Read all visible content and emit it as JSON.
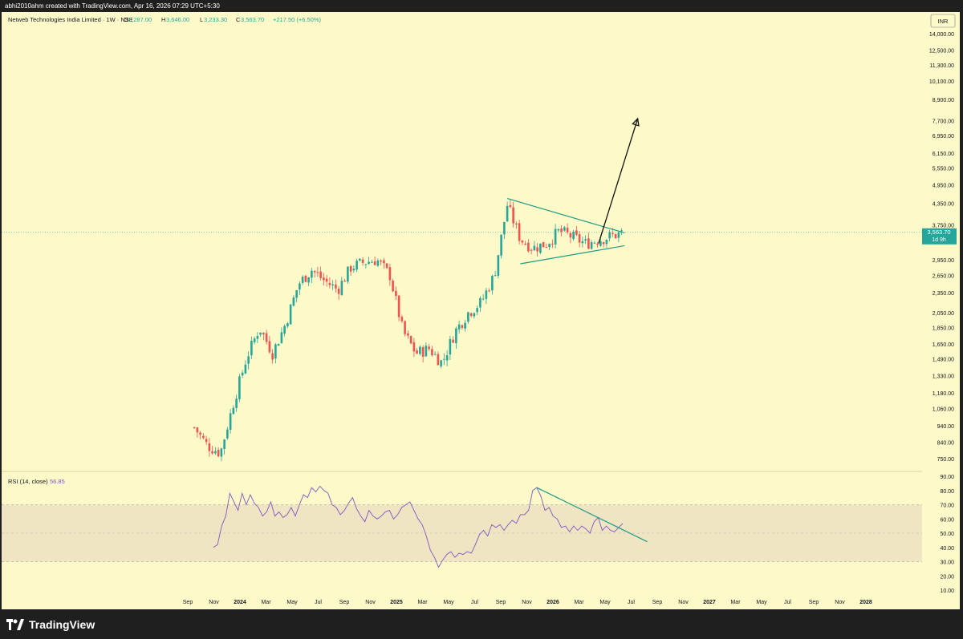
{
  "header": {
    "attribution": "abhi2010ahm created with TradingView.com, Apr 16, 2026 07:29 UTC+5:30"
  },
  "legend": {
    "symbol": "Netweb Technologies India Limited · 1W · NSE",
    "o_label": "O",
    "o_value": "3,287.00",
    "h_label": "H",
    "h_value": "3,646.00",
    "l_label": "L",
    "l_value": "3,233.30",
    "c_label": "C",
    "c_value": "3,563.70",
    "change": "+217.50 (+6.50%)"
  },
  "currency": "INR",
  "last_price": {
    "value": "3,563.70",
    "countdown": "1d 9h"
  },
  "rsi": {
    "label": "RSI (14, close)",
    "value": "56.85"
  },
  "footer": {
    "brand": "TradingView"
  },
  "colors": {
    "background": "#fef9c8",
    "up": "#26a69a",
    "down": "#ef5350",
    "rsi_line": "#7e57c2",
    "trendline": "#1e9c88",
    "arrow": "#111111"
  },
  "chart_data": [
    {
      "type": "candlestick",
      "interval": "1W",
      "scale": "log",
      "y_ticks": [
        "14,000.00",
        "12,500.00",
        "11,300.00",
        "10,100.00",
        "8,900.00",
        "7,700.00",
        "6,950.00",
        "6,150.00",
        "5,550.00",
        "4,950.00",
        "4,350.00",
        "3,750.00",
        "2,950.00",
        "2,650.00",
        "2,350.00",
        "2,050.00",
        "1,850.00",
        "1,650.00",
        "1,490.00",
        "1,330.00",
        "1,180.00",
        "1,060.00",
        "940.00",
        "840.00",
        "750.00"
      ],
      "x_ticks": [
        "Sep",
        "Nov",
        "2024",
        "Mar",
        "May",
        "Jul",
        "Sep",
        "Nov",
        "2025",
        "Mar",
        "May",
        "Jul",
        "Sep",
        "Nov",
        "2026",
        "Mar",
        "May",
        "Jul",
        "Sep",
        "Nov",
        "2027",
        "Mar",
        "May",
        "Jul",
        "Sep",
        "Nov",
        "2028"
      ],
      "ylim": [
        680,
        15500
      ],
      "last_close": 3563.7,
      "close_path": [
        [
          "2023-09",
          930
        ],
        [
          "2023-10",
          820
        ],
        [
          "2023-11",
          780
        ],
        [
          "2023-12",
          1100
        ],
        [
          "2024-01",
          1500
        ],
        [
          "2024-02",
          1850
        ],
        [
          "2024-03",
          1550
        ],
        [
          "2024-04",
          1900
        ],
        [
          "2024-05",
          2500
        ],
        [
          "2024-06",
          2750
        ],
        [
          "2024-07",
          2550
        ],
        [
          "2024-08",
          2400
        ],
        [
          "2024-09",
          2800
        ],
        [
          "2024-10",
          2900
        ],
        [
          "2024-11",
          2950
        ],
        [
          "2024-12",
          2650
        ],
        [
          "2025-01",
          1800
        ],
        [
          "2025-02",
          1550
        ],
        [
          "2025-03",
          1600
        ],
        [
          "2025-04",
          1450
        ],
        [
          "2025-05",
          1800
        ],
        [
          "2025-06",
          2050
        ],
        [
          "2025-07",
          2200
        ],
        [
          "2025-08",
          2650
        ],
        [
          "2025-09",
          4300
        ],
        [
          "2025-10",
          3400
        ],
        [
          "2025-11",
          3200
        ],
        [
          "2025-12",
          3300
        ],
        [
          "2026-01",
          3600
        ],
        [
          "2026-02",
          3450
        ],
        [
          "2026-03",
          3300
        ],
        [
          "2026-04",
          3563.7
        ]
      ],
      "annotations": {
        "symmetrical_triangle": {
          "upper": [
            [
              "2025-09",
              4500
            ],
            [
              "2026-06",
              3550
            ]
          ],
          "lower": [
            [
              "2025-10",
              2870
            ],
            [
              "2026-06",
              3250
            ]
          ]
        },
        "projection_arrow": [
          [
            "2026-04",
            3300
          ],
          [
            "2026-07",
            7800
          ]
        ]
      }
    },
    {
      "type": "line",
      "name": "RSI (14, close)",
      "y_ticks": [
        90,
        80,
        70,
        60,
        50,
        40,
        30,
        20,
        10
      ],
      "ylim": [
        10,
        90
      ],
      "bands": {
        "upper": 70,
        "middle": 50,
        "lower": 30
      },
      "series": [
        {
          "values": [
            [
              0,
              40
            ],
            [
              1,
              42
            ],
            [
              2,
              55
            ],
            [
              3,
              62
            ],
            [
              4,
              78
            ],
            [
              5,
              72
            ],
            [
              6,
              66
            ],
            [
              7,
              78
            ],
            [
              8,
              70
            ],
            [
              9,
              77
            ],
            [
              10,
              71
            ],
            [
              11,
              68
            ],
            [
              12,
              62
            ],
            [
              13,
              65
            ],
            [
              14,
              72
            ],
            [
              15,
              62
            ],
            [
              16,
              65
            ],
            [
              17,
              61
            ],
            [
              18,
              63
            ],
            [
              19,
              68
            ],
            [
              20,
              62
            ],
            [
              21,
              70
            ],
            [
              22,
              77
            ],
            [
              23,
              75
            ],
            [
              24,
              82
            ],
            [
              25,
              79
            ],
            [
              26,
              83
            ],
            [
              27,
              80
            ],
            [
              28,
              78
            ],
            [
              29,
              70
            ],
            [
              30,
              68
            ],
            [
              31,
              63
            ],
            [
              32,
              66
            ],
            [
              33,
              71
            ],
            [
              34,
              75
            ],
            [
              35,
              67
            ],
            [
              36,
              62
            ],
            [
              37,
              58
            ],
            [
              38,
              66
            ],
            [
              39,
              62
            ],
            [
              40,
              60
            ],
            [
              41,
              62
            ],
            [
              42,
              65
            ],
            [
              43,
              66
            ],
            [
              44,
              60
            ],
            [
              45,
              63
            ],
            [
              46,
              68
            ],
            [
              47,
              70
            ],
            [
              48,
              72
            ],
            [
              49,
              66
            ],
            [
              50,
              60
            ],
            [
              51,
              56
            ],
            [
              52,
              48
            ],
            [
              53,
              38
            ],
            [
              54,
              33
            ],
            [
              55,
              26
            ],
            [
              56,
              31
            ],
            [
              57,
              35
            ],
            [
              58,
              37
            ],
            [
              59,
              33
            ],
            [
              60,
              36
            ],
            [
              61,
              35
            ],
            [
              62,
              37
            ],
            [
              63,
              36
            ],
            [
              64,
              42
            ],
            [
              65,
              49
            ],
            [
              66,
              52
            ],
            [
              67,
              48
            ],
            [
              68,
              56
            ],
            [
              69,
              54
            ],
            [
              70,
              56
            ],
            [
              71,
              52
            ],
            [
              72,
              56
            ],
            [
              73,
              59
            ],
            [
              74,
              57
            ],
            [
              75,
              63
            ],
            [
              76,
              63
            ],
            [
              77,
              66
            ],
            [
              78,
              80
            ],
            [
              79,
              82
            ],
            [
              80,
              76
            ],
            [
              81,
              66
            ],
            [
              82,
              68
            ],
            [
              83,
              62
            ],
            [
              84,
              60
            ],
            [
              85,
              54
            ],
            [
              86,
              55
            ],
            [
              87,
              51
            ],
            [
              88,
              55
            ],
            [
              89,
              52
            ],
            [
              90,
              55
            ],
            [
              91,
              53
            ],
            [
              92,
              50
            ],
            [
              93,
              58
            ],
            [
              94,
              61
            ],
            [
              95,
              52
            ],
            [
              96,
              55
            ],
            [
              97,
              52
            ],
            [
              98,
              51
            ],
            [
              99,
              54
            ],
            [
              100,
              56.85
            ]
          ]
        }
      ],
      "trendline": [
        [
          79,
          82
        ],
        [
          106,
          44
        ]
      ]
    }
  ]
}
